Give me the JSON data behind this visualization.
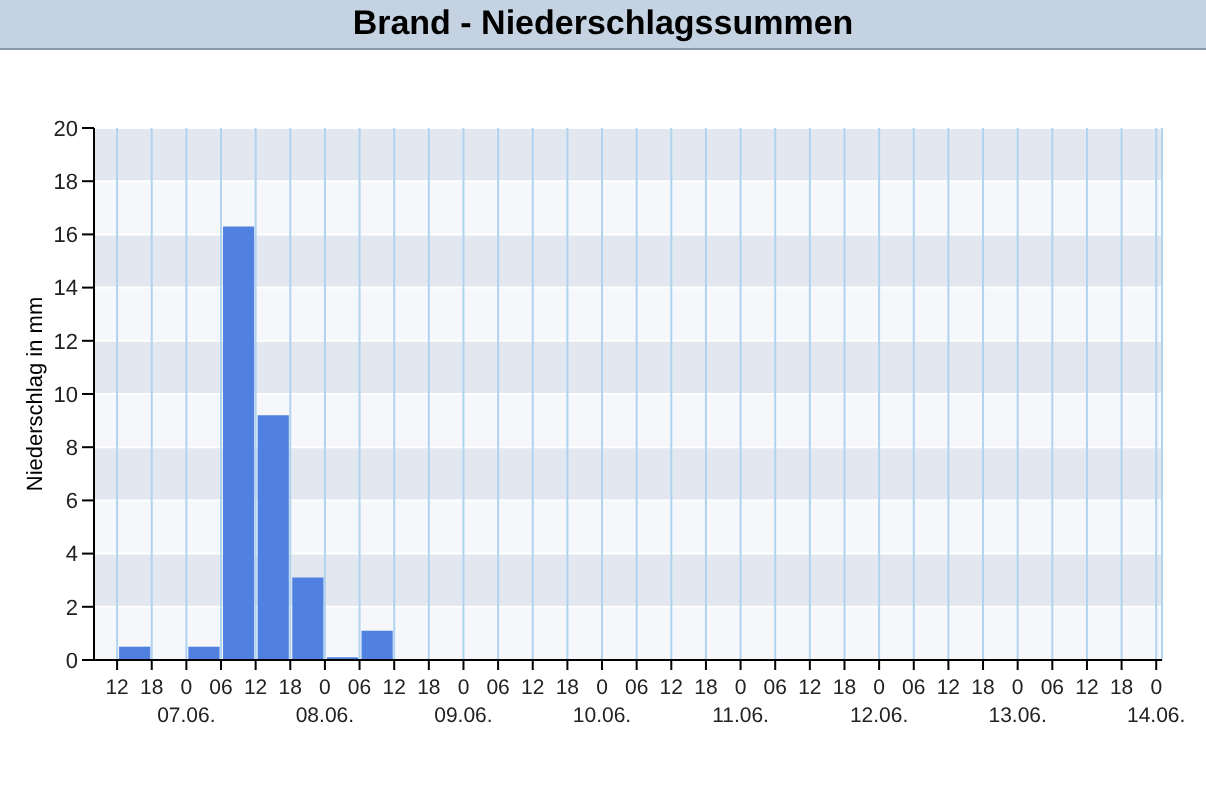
{
  "chart_data": {
    "type": "histogram",
    "title": "Brand - Niederschlagssummen",
    "ylabel": "Niederschlag in mm",
    "color": "#5080e0",
    "bins": [
      "--06-06T12:00",
      "--06-06T18:00",
      "--06-07T00:00",
      "--06-07T06:00",
      "--06-07T12:00",
      "--06-07T18:00",
      "--06-08T00:00",
      "--06-08T06:00",
      "--06-08T12:00",
      "--06-08T18:00",
      "--06-09T00:00",
      "--06-09T06:00",
      "--06-09T12:00",
      "--06-09T18:00",
      "--06-10T00:00",
      "--06-10T06:00",
      "--06-10T12:00",
      "--06-10T18:00",
      "--06-11T00:00",
      "--06-11T06:00",
      "--06-11T12:00",
      "--06-11T18:00",
      "--06-12T00:00",
      "--06-12T06:00",
      "--06-12T12:00",
      "--06-12T18:00",
      "--06-13T00:00",
      "--06-13T06:00",
      "--06-13T12:00",
      "--06-13T18:00",
      "--06-14T00:00"
    ],
    "values": [
      0.5,
      0,
      0.5,
      16.3,
      9.2,
      3.1,
      0.1,
      1.1,
      0,
      0,
      0,
      0,
      0,
      0,
      0,
      0,
      0,
      0,
      0,
      0,
      0,
      0,
      0,
      0,
      0,
      0,
      0,
      0,
      0,
      0
    ],
    "xlim": [
      "--06-06T08:00",
      "--06-14T01:00"
    ],
    "xticks": [
      {
        "value": "--06-06T12:00",
        "label": "12"
      },
      {
        "value": "--06-06T18:00",
        "label": "18"
      },
      {
        "value": "--06-07T00:00",
        "label": "0\n07.06."
      },
      {
        "value": "--06-07T06:00",
        "label": "06"
      },
      {
        "value": "--06-07T12:00",
        "label": "12"
      },
      {
        "value": "--06-07T18:00",
        "label": "18"
      },
      {
        "value": "--06-08T00:00",
        "label": "0\n08.06."
      },
      {
        "value": "--06-08T06:00",
        "label": "06"
      },
      {
        "value": "--06-08T12:00",
        "label": "12"
      },
      {
        "value": "--06-08T18:00",
        "label": "18"
      },
      {
        "value": "--06-09T00:00",
        "label": "0\n09.06."
      },
      {
        "value": "--06-09T06:00",
        "label": "06"
      },
      {
        "value": "--06-09T12:00",
        "label": "12"
      },
      {
        "value": "--06-09T18:00",
        "label": "18"
      },
      {
        "value": "--06-10T00:00",
        "label": "0\n10.06."
      },
      {
        "value": "--06-10T06:00",
        "label": "06"
      },
      {
        "value": "--06-10T12:00",
        "label": "12"
      },
      {
        "value": "--06-10T18:00",
        "label": "18"
      },
      {
        "value": "--06-11T00:00",
        "label": "0\n11.06."
      },
      {
        "value": "--06-11T06:00",
        "label": "06"
      },
      {
        "value": "--06-11T12:00",
        "label": "12"
      },
      {
        "value": "--06-11T18:00",
        "label": "18"
      },
      {
        "value": "--06-12T00:00",
        "label": "0\n12.06."
      },
      {
        "value": "--06-12T06:00",
        "label": "06"
      },
      {
        "value": "--06-12T12:00",
        "label": "12"
      },
      {
        "value": "--06-12T18:00",
        "label": "18"
      },
      {
        "value": "--06-13T00:00",
        "label": "0\n13.06."
      },
      {
        "value": "--06-13T06:00",
        "label": "06"
      },
      {
        "value": "--06-13T12:00",
        "label": "12"
      },
      {
        "value": "--06-13T18:00",
        "label": "18"
      },
      {
        "value": "--06-14T00:00",
        "label": "0\n14.06."
      }
    ],
    "ylim": [
      0,
      20
    ],
    "yticks": [
      0,
      2,
      4,
      6,
      8,
      10,
      12,
      14,
      16,
      18,
      20
    ],
    "grid": true
  }
}
